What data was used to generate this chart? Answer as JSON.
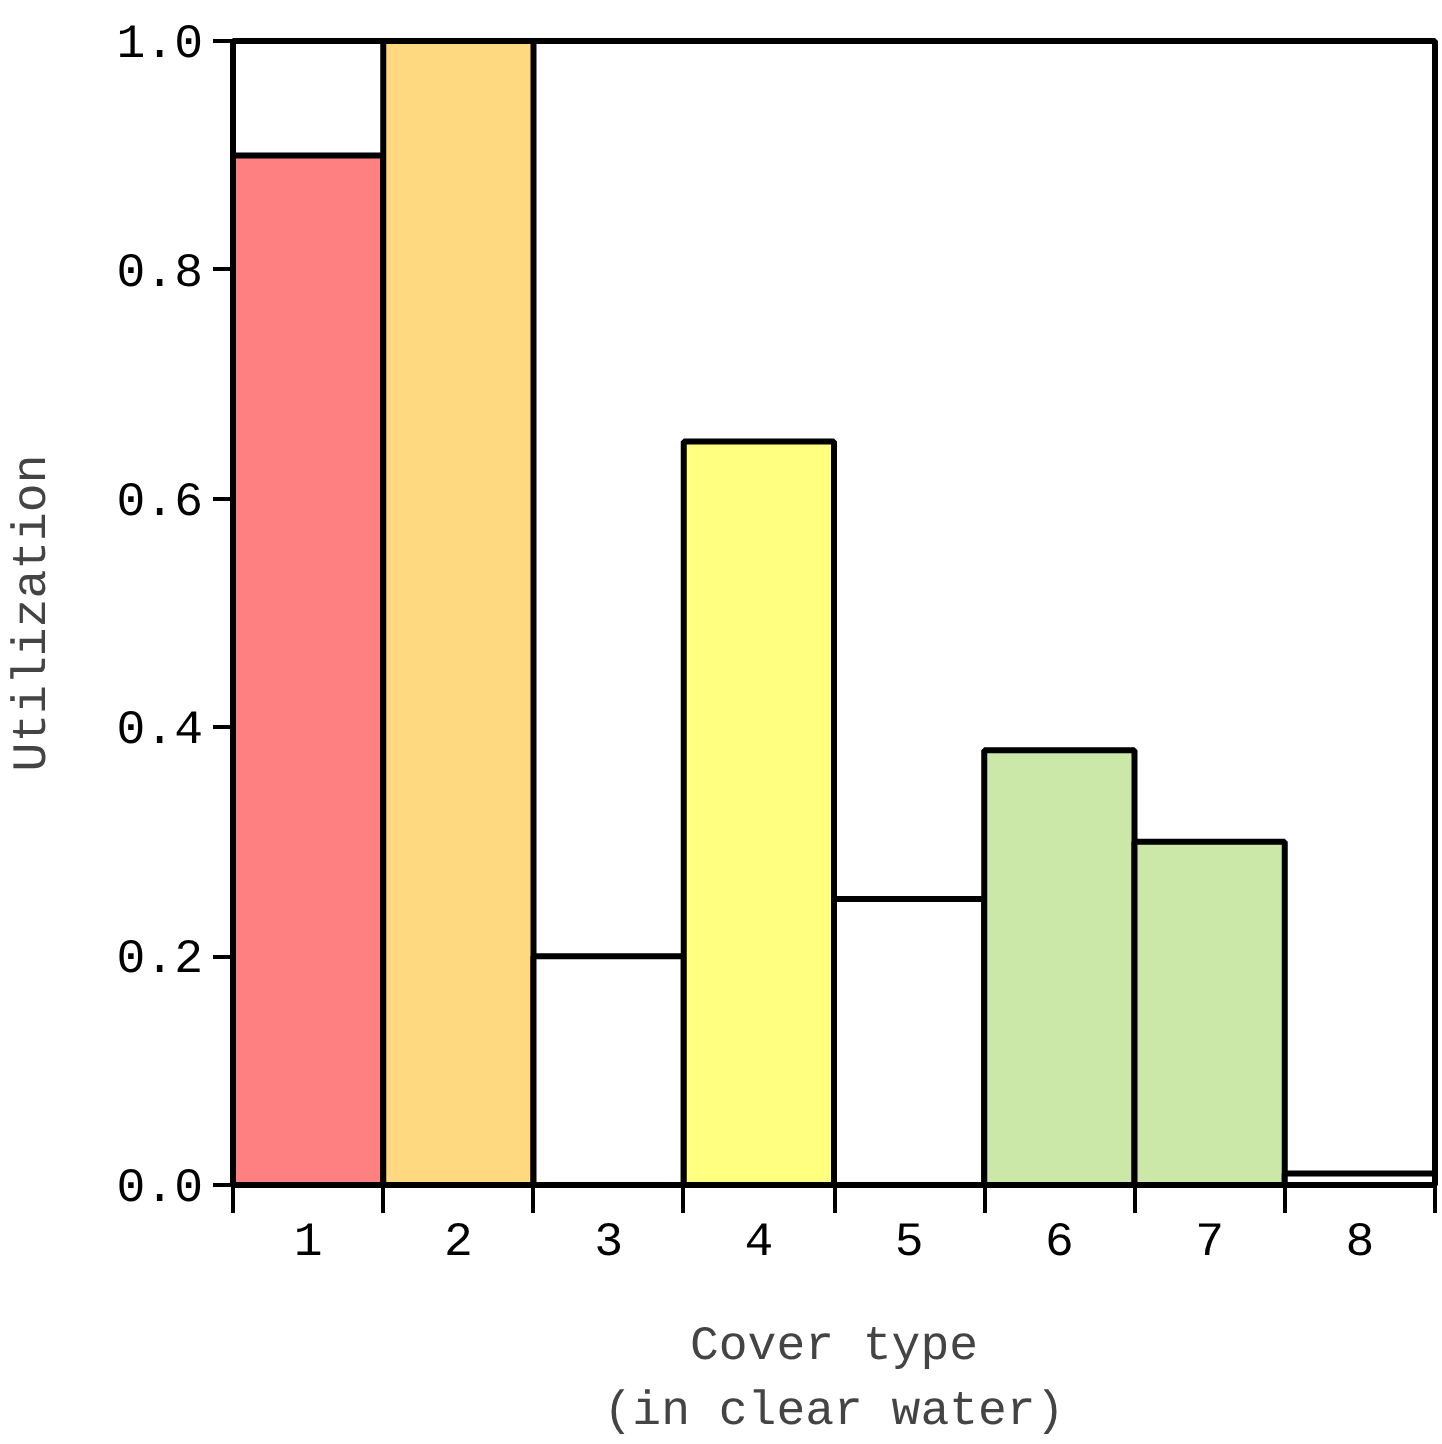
{
  "chart_data": {
    "type": "bar",
    "xlabel": "Cover type\n(in clear water)",
    "ylabel": "Utilization",
    "categories": [
      "1",
      "2",
      "3",
      "4",
      "5",
      "6",
      "7",
      "8"
    ],
    "values": [
      0.9,
      1.0,
      0.2,
      0.65,
      0.25,
      0.38,
      0.3,
      0.01
    ],
    "colors": [
      "#ff8080",
      "#ffd980",
      "#ffffff",
      "#ffff80",
      "#ffffff",
      "#cce8a8",
      "#cce8a8",
      "#ffffff"
    ],
    "ylim": [
      0,
      1
    ],
    "yticks": [
      {
        "value": 0,
        "label": "0.0"
      },
      {
        "value": 0.2,
        "label": "0.2"
      },
      {
        "value": 0.4,
        "label": "0.4"
      },
      {
        "value": 0.6,
        "label": "0.6"
      },
      {
        "value": 0.8,
        "label": "0.8"
      },
      {
        "value": 1,
        "label": "1.0"
      }
    ],
    "grid": false
  }
}
